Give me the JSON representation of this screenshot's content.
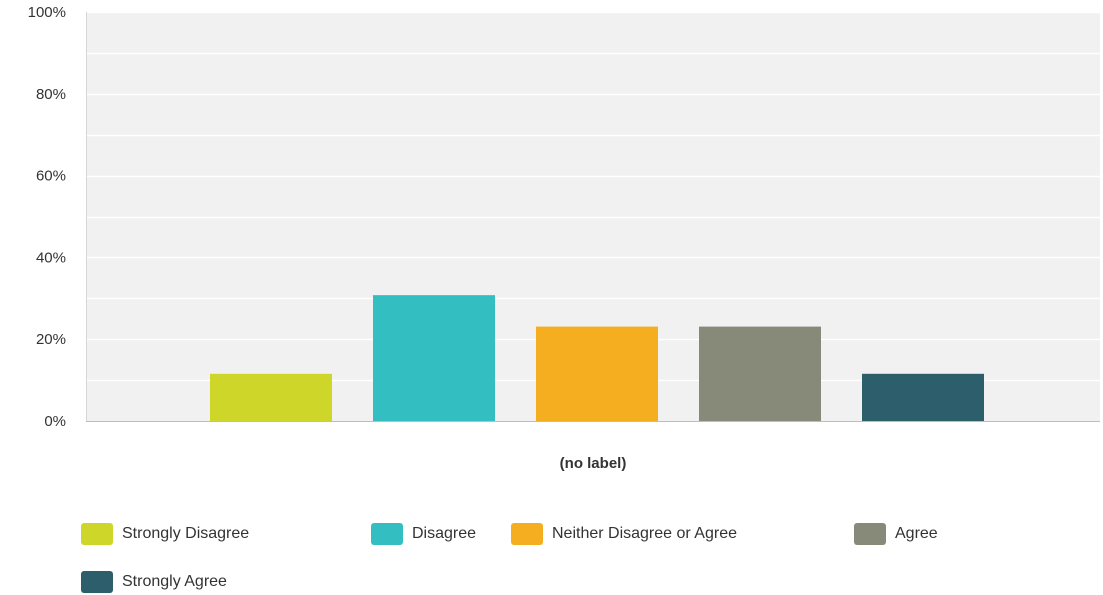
{
  "chart_data": {
    "type": "bar",
    "categories": [
      "(no label)"
    ],
    "series": [
      {
        "name": "Strongly Disagree",
        "values": [
          11.54
        ],
        "color": "#CDD629"
      },
      {
        "name": "Disagree",
        "values": [
          30.77
        ],
        "color": "#33BEC2"
      },
      {
        "name": "Neither Disagree or Agree",
        "values": [
          23.08
        ],
        "color": "#F5AE1F"
      },
      {
        "name": "Agree",
        "values": [
          23.08
        ],
        "color": "#878A79"
      },
      {
        "name": "Strongly Agree",
        "values": [
          11.54
        ],
        "color": "#2D5E6B"
      }
    ],
    "yticks": [
      "0%",
      "20%",
      "40%",
      "60%",
      "80%",
      "100%"
    ],
    "ylim": [
      0,
      100
    ],
    "title": "",
    "xlabel": "",
    "ylabel": "",
    "grid": true,
    "legend_position": "bottom-left"
  }
}
